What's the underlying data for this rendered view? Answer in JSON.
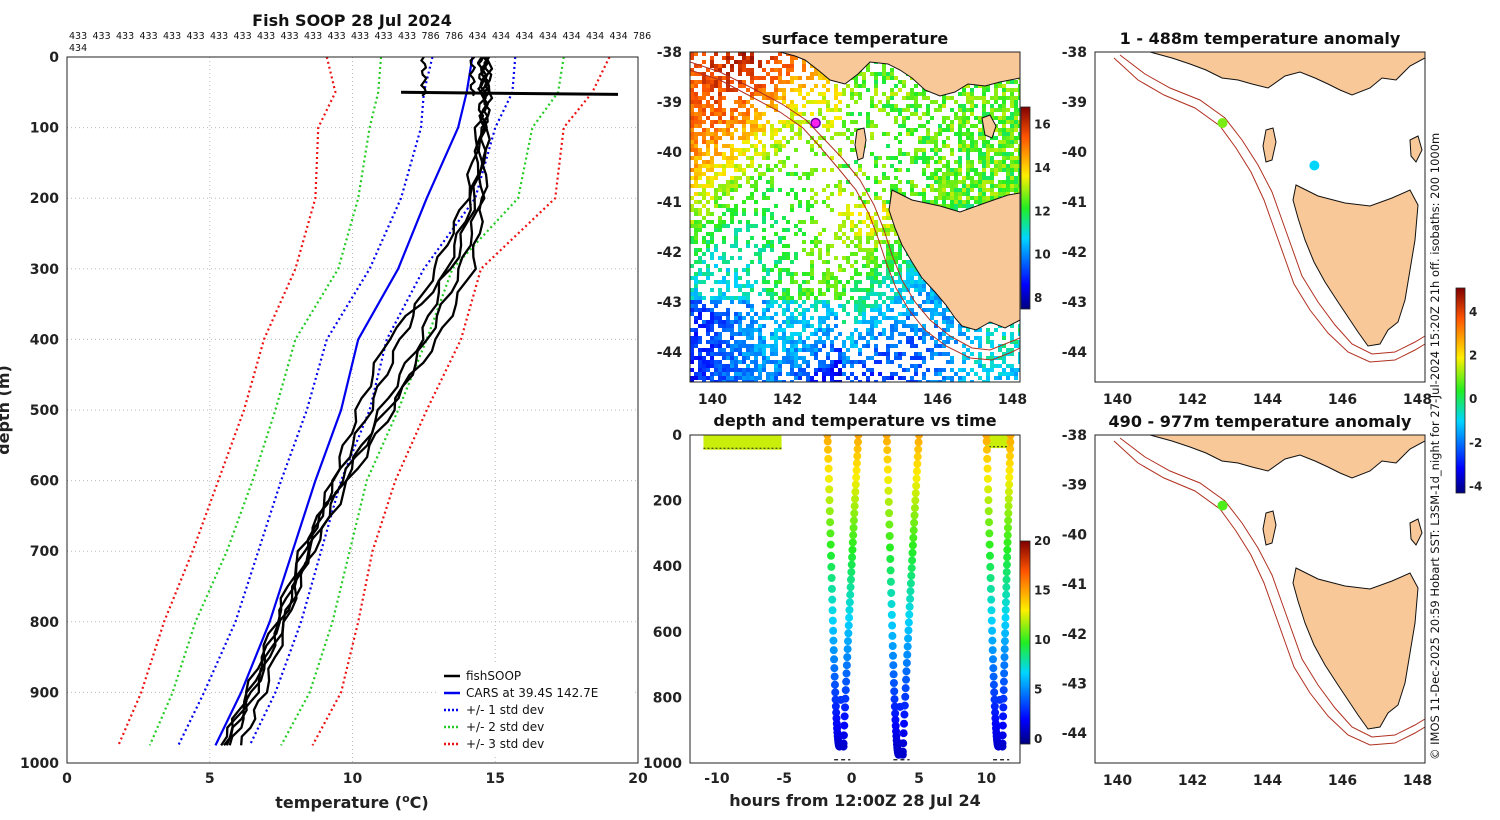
{
  "chart_data": [
    {
      "type": "line",
      "title": "Fish SOOP 28 Jul 2024",
      "xlabel": "temperature (°C)",
      "xlabel_text": "temperature (",
      "xlabel_sup": "o",
      "xlabel_unit": "C)",
      "ylabel": "depth (m)",
      "xlim": [
        0,
        20
      ],
      "ylim": [
        1000,
        0
      ],
      "xticks": [
        0,
        5,
        10,
        15,
        20
      ],
      "yticks": [
        0,
        100,
        200,
        300,
        400,
        500,
        600,
        700,
        800,
        900,
        1000
      ],
      "grid": true,
      "legend_position": "bottom-right",
      "legend": [
        "fishSOOP",
        "CARS at 39.4S 142.7E",
        "+/- 1 std dev",
        "+/- 2 std dev",
        "+/- 3 std dev"
      ],
      "top_labels_row1": [
        "433",
        "433",
        "433",
        "433",
        "433",
        "433",
        "433",
        "433",
        "433",
        "433",
        "433",
        "433",
        "433",
        "433",
        "433",
        "786",
        "786",
        "434",
        "434",
        "434",
        "434",
        "434",
        "434",
        "434",
        "786"
      ],
      "top_labels_row2": "434",
      "depths": [
        0,
        50,
        100,
        200,
        300,
        400,
        500,
        600,
        700,
        800,
        900,
        975
      ],
      "cars_mean": [
        14.2,
        14.0,
        13.7,
        12.6,
        11.6,
        10.2,
        9.6,
        8.7,
        7.9,
        7.1,
        6.1,
        5.2
      ],
      "std1_low": [
        12.8,
        12.5,
        12.4,
        11.7,
        10.6,
        9.1,
        8.4,
        7.5,
        6.7,
        5.9,
        4.8,
        3.9
      ],
      "std1_high": [
        15.7,
        15.6,
        15.0,
        14.3,
        12.5,
        11.2,
        10.6,
        9.6,
        8.9,
        8.2,
        7.3,
        6.4
      ],
      "std2_low": [
        11.0,
        10.9,
        10.6,
        10.2,
        9.5,
        8.0,
        7.3,
        6.5,
        5.6,
        4.5,
        3.7,
        2.9
      ],
      "std2_high": [
        17.4,
        17.2,
        16.3,
        15.8,
        13.5,
        12.6,
        11.6,
        10.5,
        9.9,
        9.3,
        8.5,
        7.5
      ],
      "std3_low": [
        9.1,
        9.4,
        8.8,
        8.7,
        8.0,
        6.9,
        6.2,
        5.3,
        4.4,
        3.4,
        2.6,
        1.8
      ],
      "std3_high": [
        19.0,
        18.4,
        17.4,
        17.1,
        14.5,
        13.8,
        12.6,
        11.5,
        10.7,
        10.2,
        9.6,
        8.6
      ],
      "fishsoop_profiles": [
        [
          14.6,
          14.7,
          14.5,
          14.2,
          13.3,
          12.4,
          11.0,
          9.7,
          8.5,
          7.5,
          6.6,
          5.7
        ],
        [
          14.7,
          14.8,
          14.6,
          14.5,
          13.8,
          12.6,
          11.4,
          9.9,
          8.6,
          7.6,
          6.5,
          5.6
        ],
        [
          14.8,
          14.7,
          14.7,
          14.6,
          14.2,
          13.0,
          11.2,
          9.6,
          8.2,
          7.3,
          6.3,
          5.5
        ],
        [
          14.6,
          14.6,
          14.6,
          14.3,
          13.5,
          11.2,
          10.2,
          9.3,
          8.4,
          7.7,
          6.9,
          6.1
        ],
        [
          14.5,
          14.6,
          14.4,
          14.0,
          12.9,
          11.7,
          10.6,
          9.4,
          8.3,
          7.4,
          6.4,
          5.4
        ]
      ],
      "fishsoop_surface_segment": {
        "depth": 52,
        "x0": 11.7,
        "x1": 19.3
      },
      "fishsoop_surface_wiggles": [
        12.5,
        14.2,
        14.5
      ]
    },
    {
      "type": "heatmap",
      "title": "surface temperature",
      "lon_range": [
        139.4,
        148.2
      ],
      "lat_range": [
        -44.6,
        -38.0
      ],
      "xticks": [
        140,
        142,
        144,
        146,
        148
      ],
      "yticks": [
        -38,
        -39,
        -40,
        -41,
        -42,
        -43,
        -44
      ],
      "colorbar": {
        "min": 7.5,
        "max": 16.8,
        "ticks": [
          8,
          10,
          12,
          14,
          16
        ]
      },
      "marker": {
        "lon": 142.75,
        "lat": -39.42
      }
    },
    {
      "type": "scatter",
      "title": "depth and temperature vs time",
      "xlabel": "hours from 12:00Z 28 Jul 24",
      "xlim": [
        -12,
        12.5
      ],
      "ylim": [
        1000,
        0
      ],
      "xticks": [
        -10,
        -5,
        0,
        5,
        10
      ],
      "yticks": [
        0,
        200,
        400,
        600,
        800,
        1000
      ],
      "colorbar": {
        "min": -0.5,
        "max": 20,
        "ticks": [
          0,
          5,
          10,
          15,
          20
        ]
      },
      "surface_block": {
        "t0": -11,
        "t1": -5.2,
        "depth_max": 45,
        "temp": 14.5
      },
      "dives": [
        {
          "t_down": -1.8,
          "t_bottom": -0.8,
          "t_up": 0.5,
          "bottom_depth": 950
        },
        {
          "t_down": 2.6,
          "t_bottom": 3.6,
          "t_up": 5.0,
          "bottom_depth": 975
        },
        {
          "t_down": 10.0,
          "t_bottom": 11.0,
          "t_up": 11.8,
          "bottom_depth": 950
        }
      ],
      "surface_block2": {
        "t0": 9.9,
        "t1": 12.0,
        "depth_max": 40,
        "temp": 14.5
      }
    },
    {
      "type": "heatmap",
      "title": "1 - 488m temperature anomaly",
      "lon_range": [
        139.4,
        148.2
      ],
      "lat_range": [
        -44.6,
        -38.0
      ],
      "xticks": [
        140,
        142,
        144,
        146,
        148
      ],
      "yticks": [
        -38,
        -39,
        -40,
        -41,
        -42,
        -43,
        -44
      ],
      "points": [
        {
          "lon": 142.8,
          "lat": -39.42,
          "anomaly": 1.0
        },
        {
          "lon": 145.25,
          "lat": -40.27,
          "anomaly": -1.0
        }
      ]
    },
    {
      "type": "heatmap",
      "title": "490 - 977m temperature anomaly",
      "lon_range": [
        139.4,
        148.2
      ],
      "lat_range": [
        -44.6,
        -38.0
      ],
      "xticks": [
        140,
        142,
        144,
        146,
        148
      ],
      "yticks": [
        -38,
        -39,
        -40,
        -41,
        -42,
        -43,
        -44
      ],
      "points": [
        {
          "lon": 142.8,
          "lat": -39.42,
          "anomaly": 0.7
        }
      ],
      "colorbar": {
        "min": -4.3,
        "max": 5.1,
        "ticks": [
          -4,
          -2,
          0,
          2,
          4
        ]
      }
    }
  ],
  "annotations": {
    "vertical_caption": "1000m",
    "vertical_caption_main": "L3SM-1d_night for 27-Jul-2024 15:20Z 21h off. isobaths: 200",
    "credit": "© IMOS 11-Dec-2025 20:59 Hobart SST:"
  },
  "colors": {
    "fishsoop": "#000000",
    "cars": "#0000ee",
    "std1": "#0000ee",
    "std2": "#22cc22",
    "std3": "#ee1111",
    "land": "#f8c898",
    "isobath": "#b03020"
  }
}
